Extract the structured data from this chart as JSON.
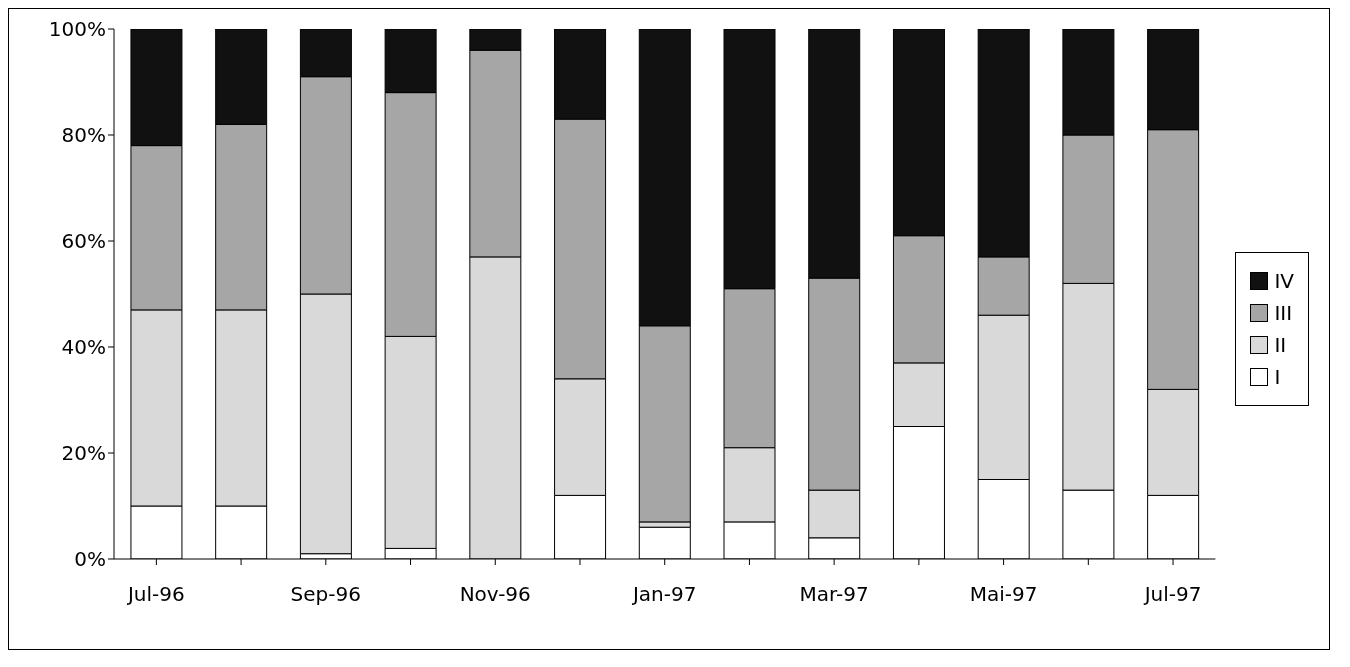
{
  "chart_data": {
    "type": "bar",
    "stacked": true,
    "categories": [
      "Jul-96",
      null,
      "Sep-96",
      null,
      "Nov-96",
      null,
      "Jan-97",
      null,
      "Mar-97",
      null,
      "Mai-97",
      null,
      "Jul-97"
    ],
    "series": [
      {
        "name": "I",
        "color": "#ffffff",
        "values": [
          10,
          10,
          1,
          2,
          0,
          12,
          6,
          7,
          4,
          25,
          15,
          13,
          12
        ]
      },
      {
        "name": "II",
        "color": "#d9d9d9",
        "values": [
          37,
          37,
          49,
          40,
          57,
          22,
          1,
          14,
          9,
          12,
          31,
          39,
          20
        ]
      },
      {
        "name": "III",
        "color": "#a6a6a6",
        "values": [
          31,
          35,
          41,
          46,
          39,
          49,
          37,
          30,
          40,
          24,
          11,
          28,
          49
        ]
      },
      {
        "name": "IV",
        "color": "#111111",
        "values": [
          22,
          18,
          9,
          12,
          4,
          17,
          56,
          49,
          47,
          39,
          43,
          20,
          19
        ]
      }
    ],
    "ylim": [
      0,
      100
    ],
    "yticks": [
      {
        "value": 0,
        "label": "0%"
      },
      {
        "value": 20,
        "label": "20%"
      },
      {
        "value": 40,
        "label": "40%"
      },
      {
        "value": 60,
        "label": "60%"
      },
      {
        "value": 80,
        "label": "80%"
      },
      {
        "value": 100,
        "label": "100%"
      }
    ],
    "grid": false,
    "legend": "right"
  }
}
